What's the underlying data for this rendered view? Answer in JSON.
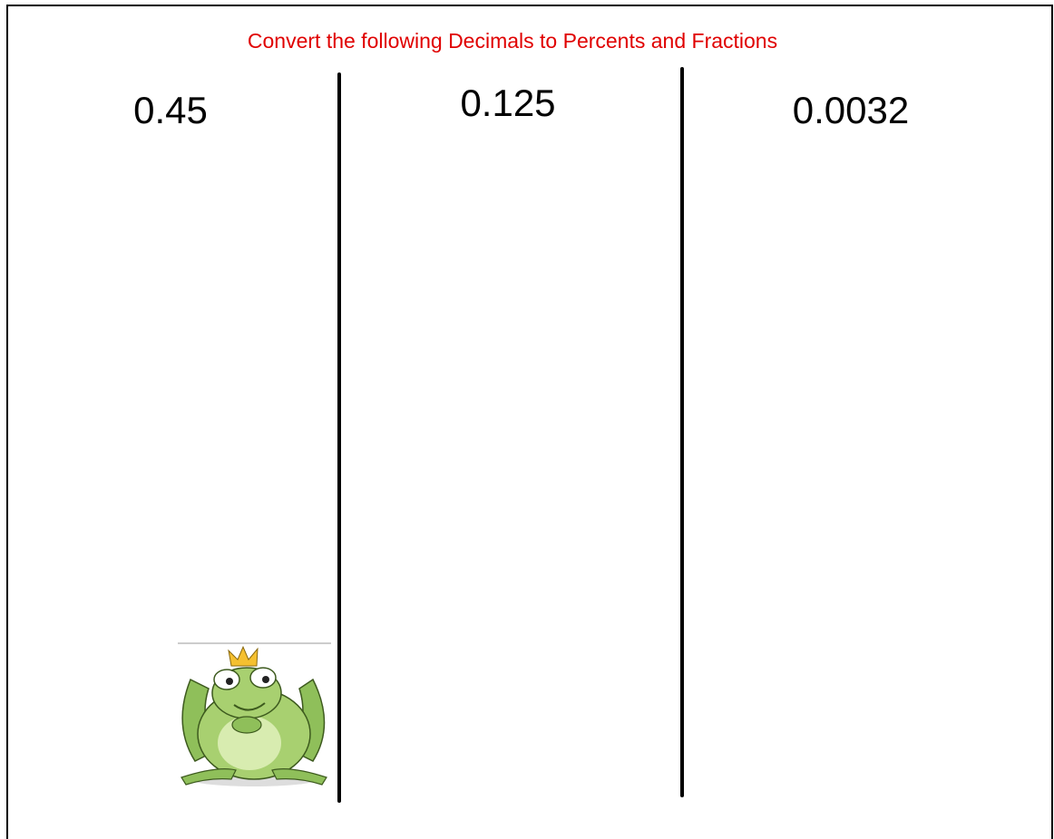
{
  "header": {
    "title": "Convert the following Decimals to Percents and Fractions"
  },
  "columns": [
    {
      "decimal": "0.45"
    },
    {
      "decimal": "0.125"
    },
    {
      "decimal": "0.0032"
    }
  ]
}
